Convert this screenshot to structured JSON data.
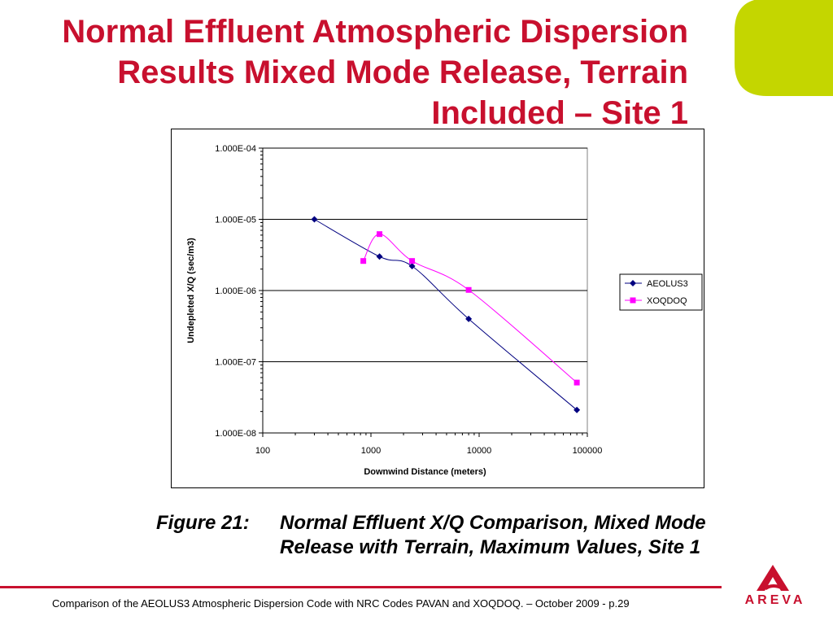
{
  "slide": {
    "title_lines": [
      "Normal Effluent Atmospheric Dispersion",
      "Results Mixed Mode Release, Terrain",
      "Included – Site 1"
    ],
    "caption": {
      "label": "Figure 21:",
      "line1": "Normal Effluent X/Q Comparison, Mixed Mode",
      "line2": "Release with Terrain, Maximum Values, Site 1"
    },
    "footer": "Comparison of the AEOLUS3 Atmospheric Dispersion Code with NRC Codes PAVAN and XOQDOQ. – October 2009 - p.29",
    "logo_text": "AREVA"
  },
  "colors": {
    "title": "#c8102e",
    "accent_leaf": "#c4d600",
    "divider": "#c8102e",
    "aeolus3": "#000080",
    "xoqdoq": "#ff00ff"
  },
  "chart_data": {
    "type": "scatter",
    "xlabel": "Downwind Distance (meters)",
    "ylabel": "Undepleted X/Q (sec/m3)",
    "x_scale": "log",
    "y_scale": "log",
    "xlim": [
      100,
      100000
    ],
    "ylim": [
      1e-08,
      0.0001
    ],
    "x_ticks": [
      "100",
      "1000",
      "10000",
      "100000"
    ],
    "y_ticks": [
      "1.000E-08",
      "1.000E-07",
      "1.000E-06",
      "1.000E-05",
      "1.000E-04"
    ],
    "grid": "horizontal major",
    "legend": "right",
    "series": [
      {
        "name": "AEOLUS3",
        "marker": "diamond",
        "x": [
          300,
          1200,
          2400,
          8000,
          80000
        ],
        "y": [
          1e-05,
          3e-06,
          2.2e-06,
          4e-07,
          2.1e-08
        ]
      },
      {
        "name": "XOQDOQ",
        "marker": "square",
        "x": [
          850,
          1200,
          2400,
          8000,
          80000
        ],
        "y": [
          2.6e-06,
          6.2e-06,
          2.6e-06,
          1.02e-06,
          5.1e-08
        ]
      }
    ]
  }
}
